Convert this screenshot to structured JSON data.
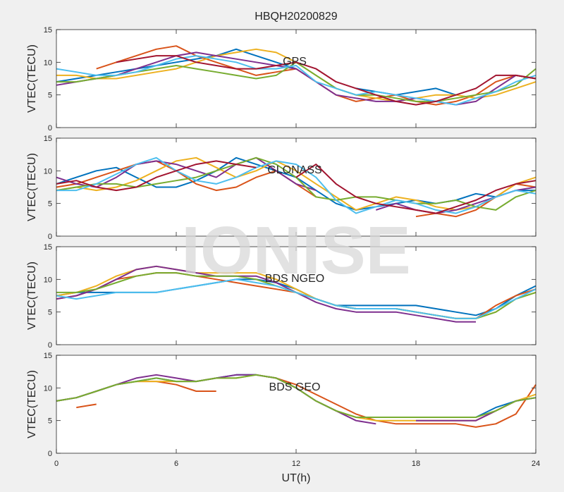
{
  "watermark": "IONISE",
  "chart_data": [
    {
      "type": "line",
      "title": "HBQH20200829",
      "ylabel": "VTEC(TECU)",
      "annotation": "GPS",
      "x": [
        0,
        1,
        2,
        3,
        4,
        5,
        6,
        7,
        8,
        9,
        10,
        11,
        12,
        13,
        14,
        15,
        16,
        17,
        18,
        19,
        20,
        21,
        22,
        23,
        24
      ],
      "xlim": [
        0,
        24
      ],
      "xticks": [
        0,
        6,
        12,
        18,
        24
      ],
      "ylim": [
        0,
        15
      ],
      "yticks": [
        0,
        5,
        10,
        15
      ],
      "series": [
        {
          "color": "#0072BD",
          "values": [
            7,
            7.5,
            8,
            8.5,
            9,
            9.5,
            10,
            10.5,
            11,
            12,
            11,
            10,
            9,
            null,
            null,
            6,
            5.5,
            5,
            5.5,
            6,
            5,
            null,
            null,
            null,
            null
          ]
        },
        {
          "color": "#D95319",
          "values": [
            null,
            null,
            9,
            10,
            11,
            12,
            12.5,
            11,
            10,
            9,
            8,
            8.5,
            9,
            7,
            5,
            4,
            4.5,
            5,
            4,
            3.5,
            4,
            5,
            7,
            8,
            7.5
          ]
        },
        {
          "color": "#EDB120",
          "values": [
            8,
            8,
            7.5,
            7.5,
            8,
            8.5,
            9,
            10,
            11,
            11.5,
            12,
            11.5,
            10,
            8,
            6,
            5,
            4.5,
            4,
            4.5,
            5,
            5,
            4.5,
            5,
            6,
            7
          ]
        },
        {
          "color": "#7E2F8E",
          "values": [
            6.5,
            7,
            7.5,
            8,
            9,
            10,
            11,
            11.5,
            11,
            10.5,
            10,
            9.5,
            9,
            7,
            5,
            4.5,
            4,
            4,
            4.5,
            4,
            3.5,
            4,
            6,
            8,
            7.5
          ]
        },
        {
          "color": "#77AC30",
          "values": [
            7,
            7,
            7.5,
            8,
            8.5,
            9,
            9.5,
            9,
            8.5,
            8,
            7.5,
            8,
            10,
            8,
            6,
            5,
            5,
            4.5,
            4,
            4,
            4.5,
            5,
            5.5,
            6.5,
            9
          ]
        },
        {
          "color": "#4DBEEE",
          "values": [
            9,
            8.5,
            8,
            8,
            8.5,
            9.5,
            10.5,
            11,
            10.5,
            10,
            9,
            9,
            9.5,
            7,
            6,
            5,
            5.5,
            5,
            4.5,
            4,
            3.5,
            4.5,
            5.5,
            7,
            8
          ]
        },
        {
          "color": "#A2142F",
          "values": [
            null,
            null,
            null,
            10,
            10.5,
            11,
            11,
            10,
            9.5,
            9,
            9,
            9.5,
            10,
            9,
            7,
            6,
            5,
            4,
            3.5,
            4,
            5,
            6,
            8,
            8,
            7.5
          ]
        }
      ]
    },
    {
      "type": "line",
      "ylabel": "VTEC(TECU)",
      "annotation": "GLONASS",
      "x": [
        0,
        1,
        2,
        3,
        4,
        5,
        6,
        7,
        8,
        9,
        10,
        11,
        12,
        13,
        14,
        15,
        16,
        17,
        18,
        19,
        20,
        21,
        22,
        23,
        24
      ],
      "xlim": [
        0,
        24
      ],
      "xticks": [
        0,
        6,
        12,
        18,
        24
      ],
      "ylim": [
        0,
        15
      ],
      "yticks": [
        0,
        5,
        10,
        15
      ],
      "series": [
        {
          "color": "#0072BD",
          "values": [
            8,
            9,
            10,
            10.5,
            9,
            7.5,
            7.5,
            8.5,
            10,
            12,
            11,
            10,
            9,
            7,
            5,
            4,
            4.5,
            5,
            5.5,
            5,
            5.5,
            6.5,
            6,
            7,
            7
          ]
        },
        {
          "color": "#D95319",
          "values": [
            7.5,
            8,
            9,
            10,
            11,
            11.5,
            10,
            8,
            7,
            7.5,
            9,
            10,
            8,
            6,
            null,
            null,
            null,
            null,
            3,
            3.5,
            3,
            4,
            6,
            8,
            7.5
          ]
        },
        {
          "color": "#EDB120",
          "values": [
            7,
            7.5,
            7,
            7.5,
            8.5,
            10,
            11.5,
            12,
            10.5,
            9,
            10,
            11.5,
            10,
            8,
            6,
            4,
            5,
            6,
            5.5,
            4.5,
            4,
            4.5,
            6,
            8,
            9
          ]
        },
        {
          "color": "#7E2F8E",
          "values": [
            9,
            8,
            7.5,
            9,
            11,
            11.5,
            11,
            10,
            9,
            11,
            12,
            10,
            8,
            7,
            null,
            null,
            4,
            5,
            4,
            3.5,
            4,
            5,
            6,
            7,
            7.5
          ]
        },
        {
          "color": "#77AC30",
          "values": [
            7,
            7.5,
            8,
            8,
            7.5,
            8,
            8.5,
            9,
            10,
            11,
            12,
            11,
            9,
            6,
            5.5,
            6,
            6,
            5.5,
            5,
            5,
            5.5,
            4.5,
            4,
            6,
            7
          ]
        },
        {
          "color": "#4DBEEE",
          "values": [
            7,
            7,
            8,
            9.5,
            11,
            12,
            10,
            8.5,
            8,
            9,
            10.5,
            11.5,
            11,
            9,
            5.5,
            3.5,
            4.5,
            5.5,
            5,
            4,
            3.5,
            4.5,
            6,
            7,
            6.5
          ]
        },
        {
          "color": "#A2142F",
          "values": [
            8,
            8.5,
            7.5,
            7,
            7.5,
            9,
            10,
            11,
            11.5,
            11,
            10.5,
            null,
            9,
            11,
            8,
            6,
            5,
            4.5,
            4,
            3.5,
            4.5,
            5.5,
            7,
            8,
            8.5
          ]
        }
      ]
    },
    {
      "type": "line",
      "ylabel": "VTEC(TECU)",
      "annotation": "BDS NGEO",
      "x": [
        0,
        1,
        2,
        3,
        4,
        5,
        6,
        7,
        8,
        9,
        10,
        11,
        12,
        13,
        14,
        15,
        16,
        17,
        18,
        19,
        20,
        21,
        22,
        23,
        24
      ],
      "xlim": [
        0,
        24
      ],
      "xticks": [
        0,
        6,
        12,
        18,
        24
      ],
      "ylim": [
        0,
        15
      ],
      "yticks": [
        0,
        5,
        10,
        15
      ],
      "series": [
        {
          "color": "#0072BD",
          "values": [
            7.5,
            8,
            8,
            8,
            8,
            8,
            8.5,
            9,
            9.5,
            10,
            10,
            9.5,
            8.5,
            7,
            6,
            6,
            6,
            6,
            6,
            5.5,
            5,
            4.5,
            5.5,
            7.5,
            9
          ]
        },
        {
          "color": "#D95319",
          "values": [
            7,
            7.5,
            8.5,
            10,
            10.5,
            11,
            11,
            10.5,
            10,
            9.5,
            9,
            8.5,
            8,
            7,
            6,
            5.5,
            5.5,
            5.5,
            5,
            4.5,
            4,
            4,
            6,
            7.5,
            8.5
          ]
        },
        {
          "color": "#EDB120",
          "values": [
            7.5,
            8,
            9,
            10.5,
            11.5,
            12,
            11.5,
            11,
            11,
            11,
            11,
            10,
            8.5,
            7,
            6,
            5.5,
            5.5,
            5.5,
            5,
            4.5,
            4,
            4,
            5,
            7,
            8
          ]
        },
        {
          "color": "#7E2F8E",
          "values": [
            7,
            7.5,
            8.5,
            10,
            11.5,
            12,
            11.5,
            11,
            10.5,
            10.5,
            10.5,
            9.5,
            8,
            6.5,
            5.5,
            5,
            5,
            5,
            4.5,
            4,
            3.5,
            3.5,
            null,
            null,
            null
          ]
        },
        {
          "color": "#77AC30",
          "values": [
            8,
            8,
            8.5,
            9.5,
            10.5,
            11,
            11,
            10.5,
            10.5,
            10.5,
            10,
            9,
            8,
            7,
            6,
            5.5,
            5.5,
            5.5,
            5,
            4.5,
            4,
            4,
            5,
            7,
            8
          ]
        },
        {
          "color": "#4DBEEE",
          "values": [
            7.5,
            7,
            7.5,
            8,
            8,
            8,
            8.5,
            9,
            9.5,
            10,
            9.5,
            9,
            8,
            7,
            6,
            5.5,
            5.5,
            5.5,
            5,
            4.5,
            4,
            4,
            5.5,
            7,
            8.5
          ]
        }
      ]
    },
    {
      "type": "line",
      "ylabel": "VTEC(TECU)",
      "annotation": "BDS GEO",
      "xlabel": "UT(h)",
      "x": [
        0,
        1,
        2,
        3,
        4,
        5,
        6,
        7,
        8,
        9,
        10,
        11,
        12,
        13,
        14,
        15,
        16,
        17,
        18,
        19,
        20,
        21,
        22,
        23,
        24
      ],
      "xlim": [
        0,
        24
      ],
      "xticks": [
        0,
        6,
        12,
        18,
        24
      ],
      "ylim": [
        0,
        15
      ],
      "yticks": [
        0,
        5,
        10,
        15
      ],
      "series": [
        {
          "color": "#0072BD",
          "values": [
            8,
            8.5,
            9.5,
            10.5,
            11,
            11.5,
            11,
            11,
            11.5,
            12,
            12,
            11.5,
            10,
            8,
            6.5,
            null,
            5.5,
            5.5,
            5.5,
            5.5,
            5.5,
            5.5,
            7,
            8,
            8.5
          ]
        },
        {
          "color": "#D95319",
          "values": [
            null,
            7,
            7.5,
            null,
            11,
            11,
            10.5,
            9.5,
            9.5,
            null,
            12,
            11.5,
            10.5,
            9,
            7.5,
            6,
            5,
            4.5,
            4.5,
            4.5,
            4.5,
            4,
            4.5,
            6,
            10.5
          ]
        },
        {
          "color": "#EDB120",
          "values": [
            8,
            8.5,
            9.5,
            10.5,
            11,
            11,
            11,
            11,
            11.5,
            11.5,
            12,
            11.5,
            10,
            8,
            6.5,
            5.5,
            5,
            5,
            5,
            5,
            5,
            5,
            6.5,
            8,
            9
          ]
        },
        {
          "color": "#7E2F8E",
          "values": [
            8,
            8.5,
            9.5,
            10.5,
            11.5,
            12,
            11.5,
            11,
            11.5,
            12,
            12,
            11.5,
            10,
            8,
            6.5,
            5,
            4.5,
            null,
            5,
            5,
            5,
            5,
            6.5,
            8,
            8.5
          ]
        },
        {
          "color": "#77AC30",
          "values": [
            8,
            8.5,
            9.5,
            10.5,
            11,
            11.5,
            11,
            11,
            11.5,
            11.5,
            12,
            11.5,
            10,
            8,
            6.5,
            5.5,
            5.5,
            5.5,
            5.5,
            5.5,
            5.5,
            5.5,
            6.5,
            8,
            8.5
          ]
        }
      ]
    }
  ]
}
